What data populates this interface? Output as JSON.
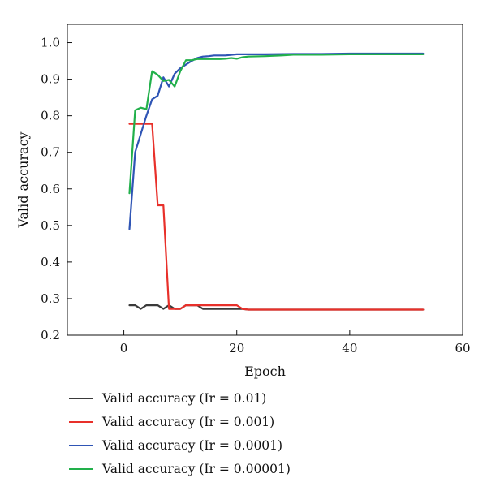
{
  "chart_data": {
    "type": "line",
    "xlabel": "Epoch",
    "ylabel": "Valid accuracy",
    "xlim": [
      -10,
      60
    ],
    "ylim": [
      0.2,
      1.05
    ],
    "xticks": [
      0,
      20,
      40,
      60
    ],
    "yticks": [
      0.2,
      0.3,
      0.4,
      0.5,
      0.6,
      0.7,
      0.8,
      0.9,
      1.0
    ],
    "xtick_labels": [
      "0",
      "20",
      "40",
      "60"
    ],
    "ytick_labels": [
      "0.2",
      "0.3",
      "0.4",
      "0.5",
      "0.6",
      "0.7",
      "0.8",
      "0.9",
      "1.0"
    ],
    "grid": false,
    "legend_position": "below",
    "series": [
      {
        "name": "Valid accuracy (Ir = 0.01)",
        "color": "#3a3a3a",
        "x": [
          1,
          2,
          3,
          4,
          5,
          6,
          7,
          8,
          9,
          10,
          11,
          12,
          13,
          14,
          15,
          16,
          17,
          18,
          19,
          20,
          21,
          22,
          25,
          30,
          35,
          40,
          45,
          50,
          53
        ],
        "y": [
          0.282,
          0.282,
          0.272,
          0.282,
          0.282,
          0.282,
          0.272,
          0.282,
          0.272,
          0.272,
          0.282,
          0.282,
          0.282,
          0.272,
          0.272,
          0.272,
          0.272,
          0.272,
          0.272,
          0.272,
          0.272,
          0.27,
          0.27,
          0.27,
          0.27,
          0.27,
          0.27,
          0.27,
          0.27
        ]
      },
      {
        "name": "Valid accuracy (Ir = 0.001)",
        "color": "#e8302a",
        "x": [
          1,
          2,
          3,
          4,
          5,
          6,
          7,
          8,
          9,
          10,
          11,
          12,
          13,
          14,
          15,
          16,
          17,
          18,
          19,
          20,
          21,
          22,
          25,
          30,
          35,
          40,
          45,
          50,
          53
        ],
        "y": [
          0.778,
          0.778,
          0.778,
          0.778,
          0.778,
          0.555,
          0.555,
          0.272,
          0.272,
          0.272,
          0.282,
          0.282,
          0.282,
          0.282,
          0.282,
          0.282,
          0.282,
          0.282,
          0.282,
          0.282,
          0.272,
          0.27,
          0.27,
          0.27,
          0.27,
          0.27,
          0.27,
          0.27,
          0.27
        ]
      },
      {
        "name": "Valid accuracy (Ir = 0.0001)",
        "color": "#2f55b5",
        "x": [
          1,
          2,
          3,
          4,
          5,
          6,
          7,
          8,
          9,
          10,
          11,
          12,
          13,
          14,
          15,
          16,
          18,
          20,
          22,
          25,
          30,
          35,
          40,
          45,
          50,
          53
        ],
        "y": [
          0.49,
          0.7,
          0.75,
          0.8,
          0.845,
          0.855,
          0.905,
          0.88,
          0.915,
          0.93,
          0.94,
          0.95,
          0.958,
          0.962,
          0.963,
          0.965,
          0.965,
          0.968,
          0.968,
          0.968,
          0.969,
          0.969,
          0.97,
          0.97,
          0.97,
          0.97
        ]
      },
      {
        "name": "Valid accuracy (Ir = 0.00001)",
        "color": "#22b04b",
        "x": [
          1,
          2,
          3,
          4,
          5,
          6,
          7,
          8,
          9,
          10,
          11,
          12,
          13,
          14,
          15,
          16,
          17,
          18,
          19,
          20,
          21,
          22,
          25,
          28,
          30,
          35,
          40,
          45,
          50,
          53
        ],
        "y": [
          0.588,
          0.815,
          0.822,
          0.818,
          0.922,
          0.912,
          0.895,
          0.898,
          0.88,
          0.922,
          0.952,
          0.952,
          0.955,
          0.955,
          0.955,
          0.955,
          0.955,
          0.956,
          0.958,
          0.956,
          0.96,
          0.962,
          0.963,
          0.965,
          0.967,
          0.967,
          0.968,
          0.968,
          0.968,
          0.968
        ]
      }
    ]
  }
}
